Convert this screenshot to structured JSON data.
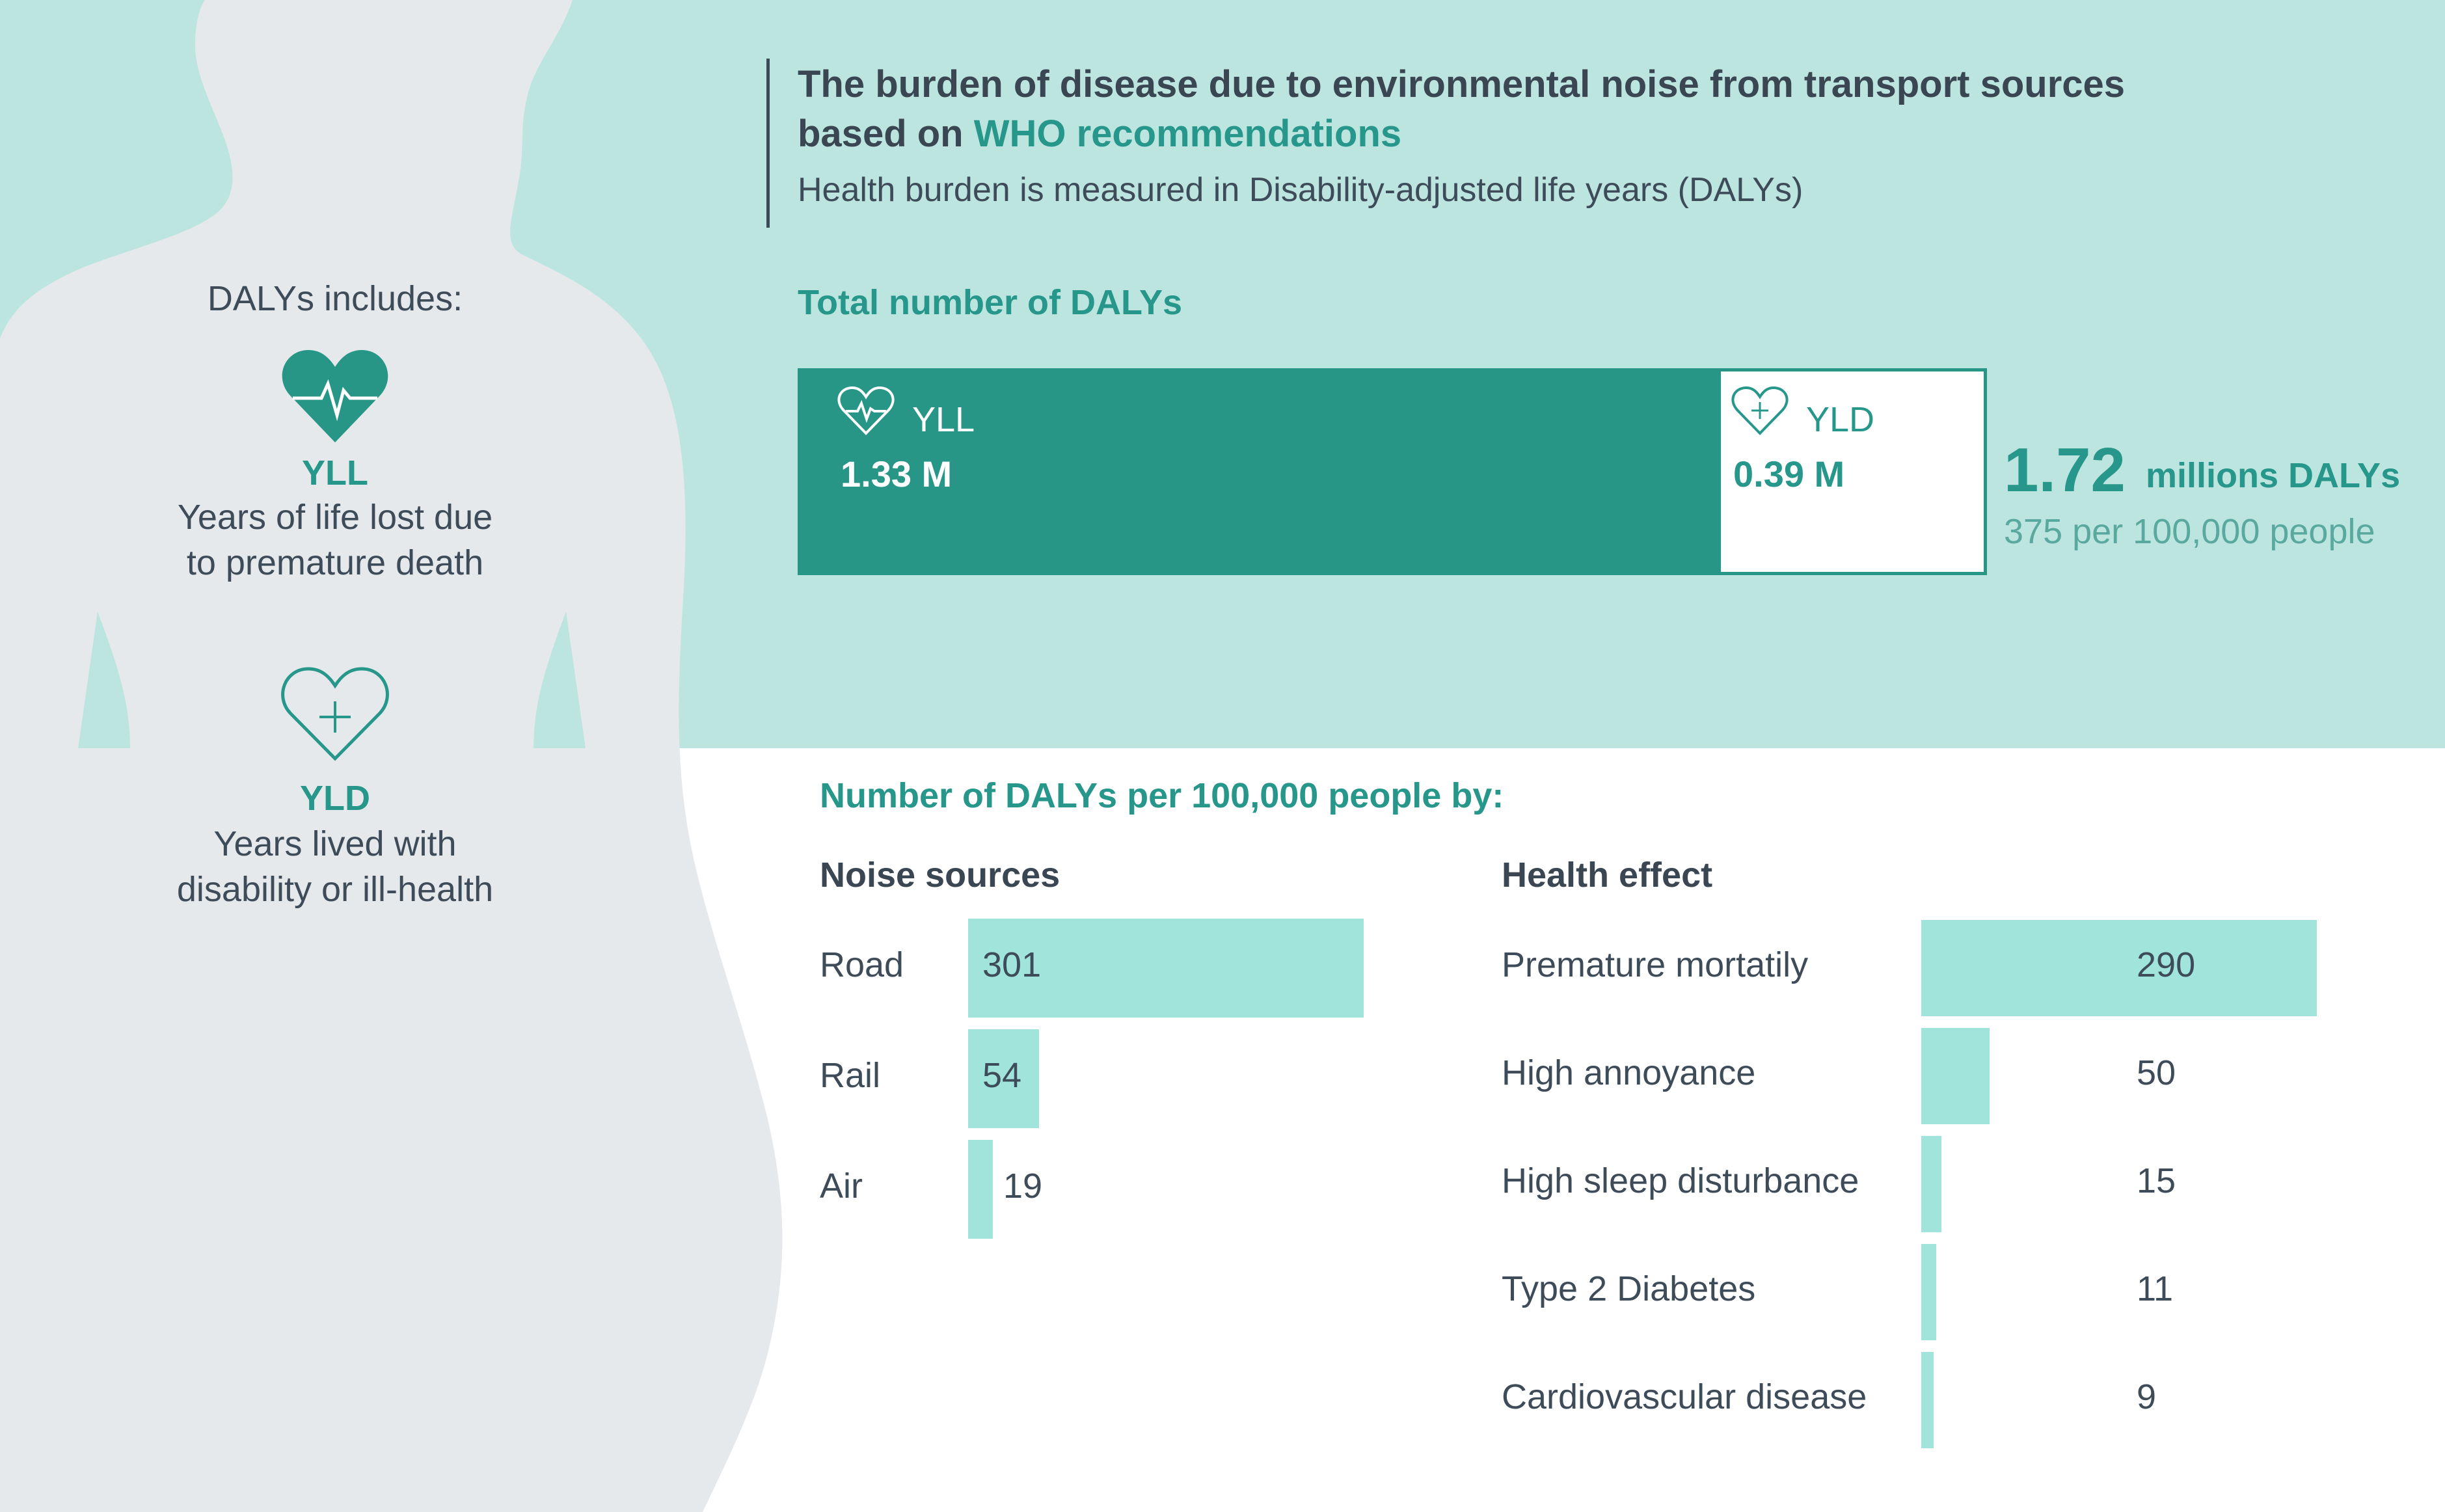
{
  "title": {
    "line1": "The burden of disease due to environmental noise from transport sources",
    "line2_prefix": "based on ",
    "line2_highlight": "WHO recommendations",
    "subtitle": "Health burden is measured in Disability-adjusted life years (DALYs)"
  },
  "legend_panel": {
    "intro": "DALYs includes:",
    "yll": {
      "abbr": "YLL",
      "description": "Years of life lost due to premature death",
      "icon": "heart-pulse-icon"
    },
    "yld": {
      "abbr": "YLD",
      "description": "Years lived with disability or ill-health",
      "icon": "heart-plus-icon"
    }
  },
  "total": {
    "heading": "Total number of DALYs",
    "value": "1.72",
    "unit": "millions DALYs",
    "per_100k": "375 per 100,000 people"
  },
  "breakdown": {
    "heading": "Number of DALYs per 100,000 people by:",
    "noise_heading": "Noise sources",
    "health_heading": "Health effect"
  },
  "colors": {
    "band": "#bde5df",
    "accent": "#26978a",
    "bar": "#a1e4dc",
    "silhouette": "#e6e9ec",
    "text": "#3e4b58"
  },
  "chart_data": [
    {
      "type": "bar",
      "orientation": "horizontal-stacked",
      "categories": [
        "YLL",
        "YLD"
      ],
      "values": [
        1.33,
        0.39
      ],
      "value_labels": [
        "1.33 M",
        "0.39 M"
      ]
    },
    {
      "type": "bar",
      "orientation": "horizontal",
      "categories": [
        "Road",
        "Rail",
        "Air"
      ],
      "values": [
        301,
        54,
        19
      ]
    },
    {
      "type": "bar",
      "orientation": "horizontal",
      "categories": [
        "Premature mortatily",
        "High annoyance",
        "High sleep disturbance",
        "Type 2 Diabetes",
        "Cardiovascular disease"
      ],
      "values": [
        290,
        50,
        15,
        11,
        9
      ]
    }
  ]
}
